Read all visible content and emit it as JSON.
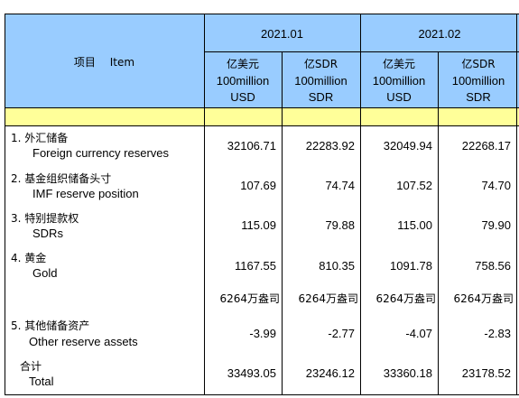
{
  "header": {
    "item_label": "项目　 Item",
    "periods": [
      "2021.01",
      "2021.02"
    ],
    "col_usd": [
      "亿美元",
      "100million",
      "USD"
    ],
    "col_sdr": [
      "亿SDR",
      "100million",
      "SDR"
    ]
  },
  "rows": [
    {
      "cn": "1. 外汇储备",
      "en": "Foreign currency reserves",
      "v": [
        "32106.71",
        "22283.92",
        "32049.94",
        "22268.17"
      ]
    },
    {
      "cn": "2. 基金组织储备头寸",
      "en": "IMF reserve position",
      "v": [
        "107.69",
        "74.74",
        "107.52",
        "74.70"
      ]
    },
    {
      "cn": "3. 特别提款权",
      "en": "SDRs",
      "v": [
        "115.09",
        "79.88",
        "115.00",
        "79.90"
      ]
    },
    {
      "cn": "4. 黄金",
      "en": "Gold",
      "v": [
        "1167.55",
        "810.35",
        "1091.78",
        "758.56"
      ]
    },
    {
      "cn": "",
      "en": "",
      "v": [
        "6264万盎司",
        "6264万盎司",
        "6264万盎司",
        "6264万盎司"
      ]
    },
    {
      "cn": "5. 其他储备资产",
      "en": "Other reserve assets",
      "v": [
        "-3.99",
        "-2.77",
        "-4.07",
        "-2.83"
      ]
    },
    {
      "cn": "合计",
      "en": "Total",
      "v": [
        "33493.05",
        "23246.12",
        "33360.18",
        "23178.52"
      ]
    }
  ],
  "colors": {
    "header_blue": "#99ccff",
    "spacer_yellow": "#ffff99",
    "grid": "#000000"
  }
}
